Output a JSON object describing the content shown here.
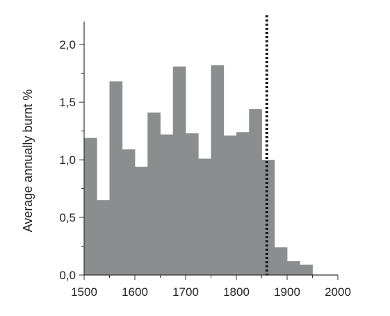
{
  "chart_data": {
    "type": "bar",
    "title": "",
    "xlabel": "",
    "ylabel": "Average annually burnt %",
    "xlim": [
      1500,
      2000
    ],
    "ylim": [
      0,
      2.2
    ],
    "bin_width": 25,
    "bins": [
      {
        "start": 1500,
        "value": 1.19
      },
      {
        "start": 1525,
        "value": 0.65
      },
      {
        "start": 1550,
        "value": 1.68
      },
      {
        "start": 1575,
        "value": 1.09
      },
      {
        "start": 1600,
        "value": 0.94
      },
      {
        "start": 1625,
        "value": 1.41
      },
      {
        "start": 1650,
        "value": 1.22
      },
      {
        "start": 1675,
        "value": 1.81
      },
      {
        "start": 1700,
        "value": 1.23
      },
      {
        "start": 1725,
        "value": 1.01
      },
      {
        "start": 1750,
        "value": 1.82
      },
      {
        "start": 1775,
        "value": 1.21
      },
      {
        "start": 1800,
        "value": 1.24
      },
      {
        "start": 1825,
        "value": 1.44
      },
      {
        "start": 1850,
        "value": 1.0
      },
      {
        "start": 1875,
        "value": 0.24
      },
      {
        "start": 1900,
        "value": 0.12
      },
      {
        "start": 1925,
        "value": 0.09
      }
    ],
    "vertical_marker": {
      "x": 1860,
      "style": "dotted"
    },
    "x_ticks": [
      {
        "value": 1500,
        "label": "1500"
      },
      {
        "value": 1600,
        "label": "1600"
      },
      {
        "value": 1700,
        "label": "1700"
      },
      {
        "value": 1800,
        "label": "1800"
      },
      {
        "value": 1900,
        "label": "1900"
      },
      {
        "value": 2000,
        "label": "2000"
      }
    ],
    "y_ticks": [
      {
        "value": 0.0,
        "label": "0,0"
      },
      {
        "value": 0.5,
        "label": "0,5"
      },
      {
        "value": 1.0,
        "label": "1,0"
      },
      {
        "value": 1.5,
        "label": "1,5"
      },
      {
        "value": 2.0,
        "label": "2,0"
      }
    ],
    "grid": false,
    "colors": {
      "bar": "#8c8d8f",
      "axis": "#333333",
      "marker": "#1a1a1a"
    }
  }
}
